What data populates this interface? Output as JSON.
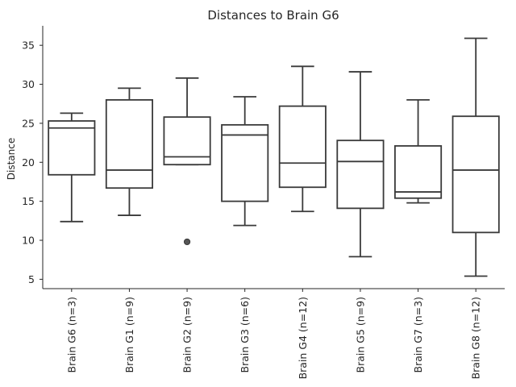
{
  "chart_data": {
    "type": "box",
    "title": "Distances to Brain G6",
    "xlabel": "",
    "ylabel": "Distance",
    "ylim": [
      3.8,
      37.5
    ],
    "yticks": [
      5,
      10,
      15,
      20,
      25,
      30,
      35
    ],
    "grid": false,
    "categories": [
      "Brain G6 (n=3)",
      "Brain G1 (n=9)",
      "Brain G2 (n=9)",
      "Brain G3 (n=6)",
      "Brain G4 (n=12)",
      "Brain G5 (n=9)",
      "Brain G7 (n=3)",
      "Brain G8 (n=12)"
    ],
    "boxes": [
      {
        "whisker_low": 12.4,
        "q1": 18.4,
        "median": 24.4,
        "q3": 25.3,
        "whisker_high": 26.3,
        "outliers": []
      },
      {
        "whisker_low": 13.2,
        "q1": 16.7,
        "median": 19.0,
        "q3": 28.0,
        "whisker_high": 29.5,
        "outliers": []
      },
      {
        "whisker_low": 19.7,
        "q1": 19.7,
        "median": 20.7,
        "q3": 25.8,
        "whisker_high": 30.8,
        "outliers": [
          9.8
        ]
      },
      {
        "whisker_low": 11.9,
        "q1": 15.0,
        "median": 23.5,
        "q3": 24.8,
        "whisker_high": 28.4,
        "outliers": []
      },
      {
        "whisker_low": 13.7,
        "q1": 16.8,
        "median": 19.9,
        "q3": 27.2,
        "whisker_high": 32.3,
        "outliers": []
      },
      {
        "whisker_low": 7.9,
        "q1": 14.1,
        "median": 20.1,
        "q3": 22.8,
        "whisker_high": 31.6,
        "outliers": []
      },
      {
        "whisker_low": 14.8,
        "q1": 15.4,
        "median": 16.2,
        "q3": 22.1,
        "whisker_high": 28.0,
        "outliers": []
      },
      {
        "whisker_low": 5.4,
        "q1": 11.0,
        "median": 19.0,
        "q3": 25.9,
        "whisker_high": 35.9,
        "outliers": []
      }
    ]
  }
}
